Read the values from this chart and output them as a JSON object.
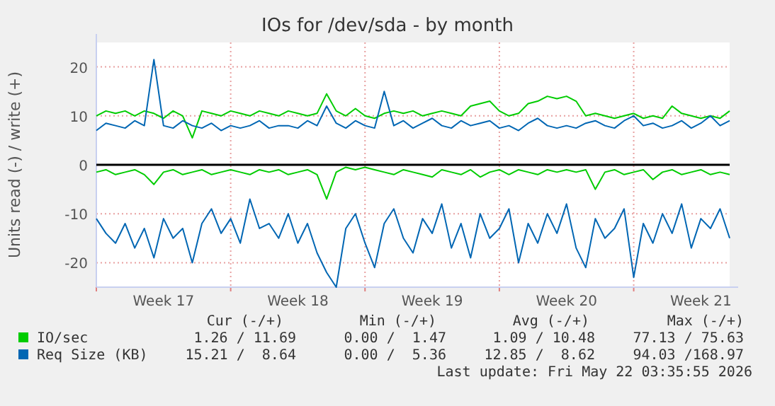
{
  "chart_data": {
    "type": "line",
    "title": "IOs for /dev/sda - by month",
    "ylabel": "Units read (-) / write (+)",
    "categories": [
      null,
      null,
      null,
      null,
      null,
      null,
      null,
      "Week 17",
      null,
      null,
      null,
      null,
      null,
      null,
      null,
      null,
      null,
      null,
      null,
      null,
      null,
      "Week 18",
      null,
      null,
      null,
      null,
      null,
      null,
      null,
      null,
      null,
      null,
      null,
      null,
      null,
      "Week 19",
      null,
      null,
      null,
      null,
      null,
      null,
      null,
      null,
      null,
      null,
      null,
      null,
      null,
      "Week 20",
      null,
      null,
      null,
      null,
      null,
      null,
      null,
      null,
      null,
      null,
      null,
      null,
      null,
      "Week 21",
      null,
      null,
      null
    ],
    "ylim": [
      -25,
      25
    ],
    "yticks": [
      -20,
      -10,
      0,
      10,
      20
    ],
    "grid": true,
    "legend": "bottom",
    "ref_lines": [
      {
        "axis": "y",
        "value": 0,
        "color": "#000000"
      }
    ],
    "series": [
      {
        "name": "IO/sec",
        "color": "#00cc00",
        "values": [
          10,
          11,
          10.5,
          11,
          10,
          11,
          10.5,
          9.5,
          11,
          10,
          5.5,
          11,
          10.5,
          10,
          11,
          10.5,
          10,
          11,
          10.5,
          10,
          11,
          10.5,
          10,
          10.5,
          14.5,
          11,
          10,
          11.5,
          10,
          9.5,
          10.5,
          11,
          10.5,
          11,
          10,
          10.5,
          11,
          10.5,
          10,
          12,
          12.5,
          13,
          11,
          10,
          10.5,
          12.5,
          13,
          14,
          13.5,
          14,
          13,
          10,
          10.5,
          10,
          9.5,
          10,
          10.5,
          9.5,
          10,
          9.5,
          12,
          10.5,
          10,
          9.5,
          10,
          9.5,
          11
        ]
      },
      {
        "color": "#00cc00",
        "values": [
          -1.5,
          -1,
          -2,
          -1.5,
          -1,
          -2,
          -4,
          -1.5,
          -1,
          -2,
          -1.5,
          -1,
          -2,
          -1.5,
          -1,
          -1.5,
          -2,
          -1,
          -1.5,
          -1,
          -2,
          -1.5,
          -1,
          -2,
          -7,
          -1.5,
          -0.5,
          -1,
          -0.5,
          -1,
          -1.5,
          -2,
          -1,
          -1.5,
          -2,
          -2.5,
          -1,
          -1.5,
          -2,
          -1,
          -2.5,
          -1.5,
          -1,
          -2,
          -1,
          -1.5,
          -2,
          -1,
          -1.5,
          -1,
          -1.5,
          -1,
          -5,
          -1.5,
          -1,
          -2,
          -1.5,
          -1,
          -3,
          -1.5,
          -1,
          -2,
          -1.5,
          -1,
          -2,
          -1.5,
          -2
        ]
      },
      {
        "name": "Req Size (KB)",
        "color": "#0066b3",
        "values": [
          7,
          8.5,
          8,
          7.5,
          9,
          8,
          21.5,
          8,
          7.5,
          9,
          8,
          7.5,
          8.5,
          7,
          8,
          7.5,
          8,
          9,
          7.5,
          8,
          8,
          7.5,
          9,
          8,
          12,
          8.5,
          7.5,
          9,
          8,
          7.5,
          15,
          8,
          9,
          7.5,
          8.5,
          9.5,
          8,
          7.5,
          9,
          8,
          8.5,
          9,
          7.5,
          8,
          7,
          8.5,
          9.5,
          8,
          7.5,
          8,
          7.5,
          8.5,
          9,
          8,
          7.5,
          9,
          10,
          8,
          8.5,
          7.5,
          8,
          9,
          7.5,
          8.5,
          10,
          8,
          9
        ]
      },
      {
        "color": "#0066b3",
        "values": [
          -11,
          -14,
          -16,
          -12,
          -17,
          -13,
          -19,
          -11,
          -15,
          -13,
          -20,
          -12,
          -9,
          -14,
          -11,
          -16,
          -7,
          -13,
          -12,
          -15,
          -10,
          -16,
          -12,
          -18,
          -22,
          -25,
          -13,
          -10,
          -16,
          -21,
          -12,
          -9,
          -15,
          -18,
          -11,
          -14,
          -8,
          -17,
          -12,
          -19,
          -10,
          -15,
          -13,
          -9,
          -20,
          -12,
          -16,
          -10,
          -14,
          -8,
          -17,
          -21,
          -11,
          -15,
          -13,
          -9,
          -23,
          -12,
          -16,
          -10,
          -14,
          -8,
          -17,
          -11,
          -13,
          -9,
          -15
        ]
      }
    ],
    "annotations": [
      "Cur (-/+)",
      "Min (-/+)",
      "Avg (-/+)",
      "Max (-/+)",
      "1.26 / 11.69",
      "0.00 /  1.47",
      "1.09 / 10.48",
      "77.13 / 75.63",
      "15.21 /  8.64",
      "0.00 /  5.36",
      "12.85 /  8.62",
      "94.03 /168.97",
      "Last update: Fri May 22 03:35:55 2026"
    ]
  }
}
